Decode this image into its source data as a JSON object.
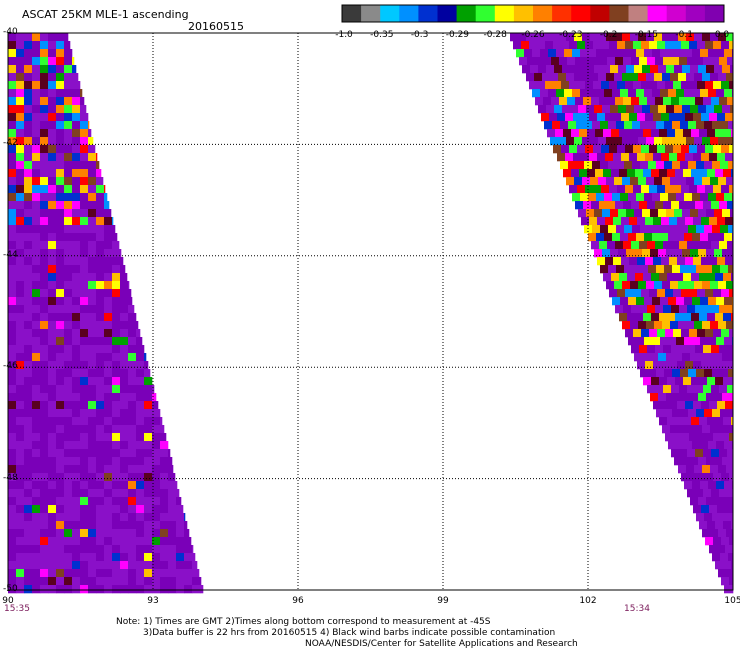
{
  "header": {
    "title": "ASCAT 25KM MLE-1 ascending",
    "date": "20160515"
  },
  "colorbar": {
    "colors": [
      "#3a3a3a",
      "#8a8a8a",
      "#00c8ff",
      "#0090ff",
      "#0030d0",
      "#0000a0",
      "#00a000",
      "#30ff30",
      "#ffff00",
      "#ffc000",
      "#ff8000",
      "#ff3000",
      "#ff0000",
      "#c00000",
      "#804020",
      "#c08080",
      "#ff00ff",
      "#d000d0",
      "#a000c0",
      "#8000b0"
    ],
    "labels": [
      "-1.0",
      "-0.35",
      "-0.3",
      "-0.29",
      "-0.28",
      "-0.26",
      "-0.23",
      "-0.2",
      "-0.15",
      "-0.1",
      "0.0"
    ]
  },
  "map": {
    "lat_labels": [
      "-40",
      "-42",
      "-44",
      "-46",
      "-48",
      "-50"
    ],
    "lon_labels": [
      "90",
      "93",
      "96",
      "99",
      "102",
      "105"
    ],
    "time_left": "15:35",
    "time_right": "15:34",
    "swath_colors": {
      "base": "#7a00b8",
      "base_alt": "#8a10c8",
      "accents": [
        "#ff00ff",
        "#ff0000",
        "#ffc000",
        "#ffff00",
        "#0090ff",
        "#0030d0",
        "#00a000",
        "#804020",
        "#5a0020",
        "#ff8000",
        "#30ff30"
      ]
    }
  },
  "notes": {
    "line1": "Note: 1) Times are GMT 2)Times along bottom correspond to measurement at -45S",
    "line2": "3)Data buffer is 22 hrs from 20160515 4) Black wind barbs indicate possible contamination",
    "line3": "NOAA/NESDIS/Center for Satellite Applications and Research"
  }
}
